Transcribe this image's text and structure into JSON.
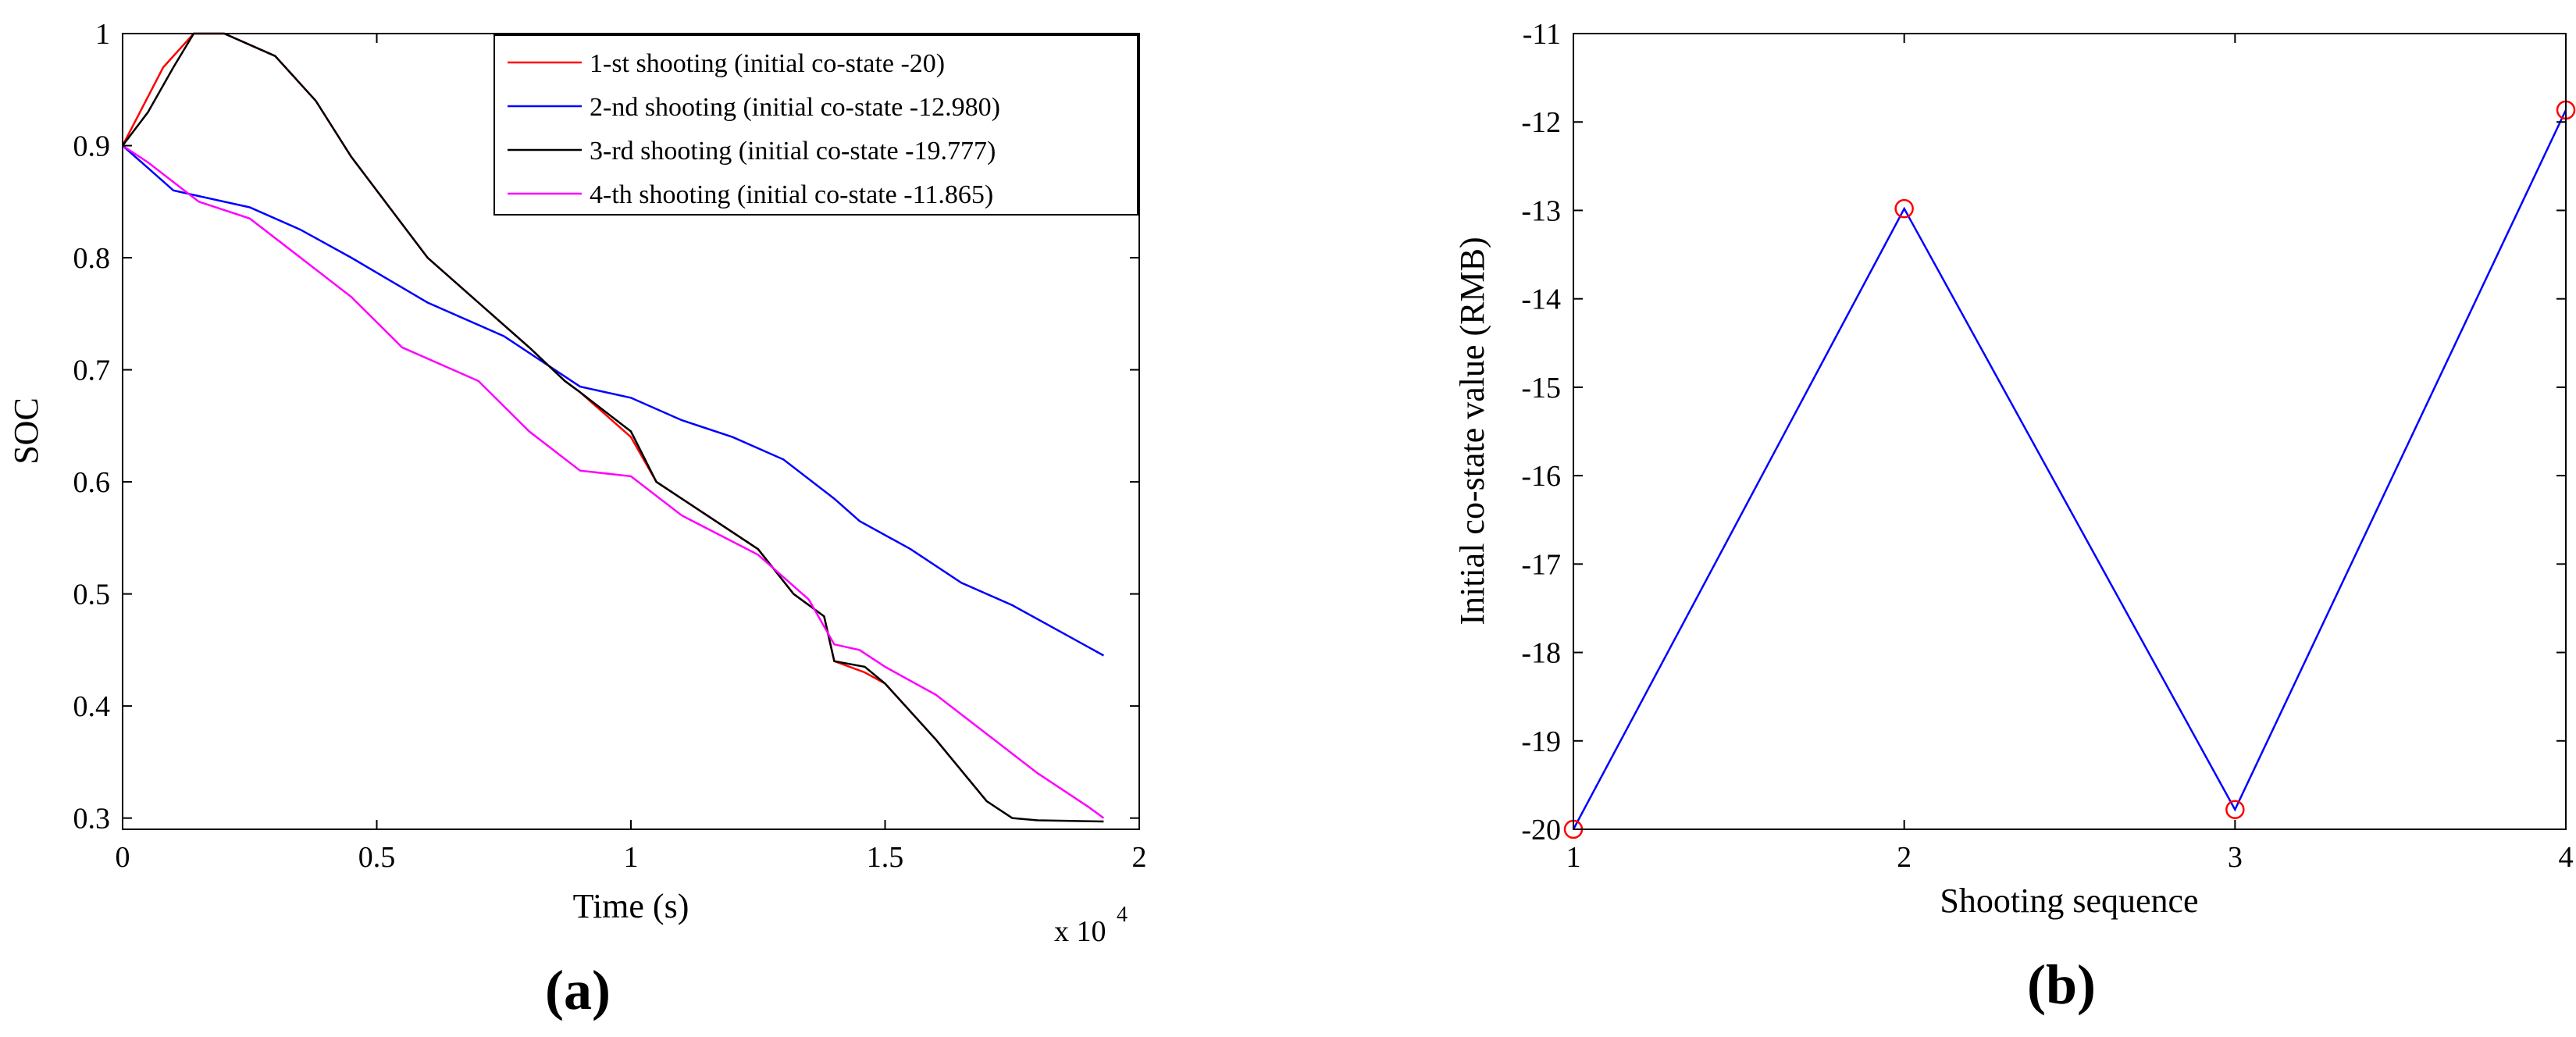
{
  "chart_data": [
    {
      "type": "line",
      "panel_label": "a",
      "xlabel": "Time (s)",
      "ylabel": "SOC",
      "x_multiplier_label": "x 10",
      "x_multiplier_exp": "4",
      "xlim": [
        0,
        2
      ],
      "ylim": [
        0.29,
        1
      ],
      "xticks": [
        "0",
        "0.5",
        "1",
        "1.5",
        "2"
      ],
      "yticks": [
        "0.3",
        "0.4",
        "0.5",
        "0.6",
        "0.7",
        "0.8",
        "0.9",
        "1"
      ],
      "legend_position": "top-right",
      "series": [
        {
          "name": "1-st shooting (initial co-state -20)",
          "color": "#ff0000",
          "x": [
            0,
            0.08,
            0.14,
            0.2,
            0.3,
            0.38,
            0.45,
            0.55,
            0.6,
            0.7,
            0.8,
            0.87,
            0.9,
            1.0,
            1.05,
            1.15,
            1.25,
            1.32,
            1.38,
            1.4,
            1.46,
            1.5,
            1.6,
            1.7
          ],
          "values": [
            0.9,
            0.97,
            1.0,
            1.0,
            0.98,
            0.94,
            0.89,
            0.83,
            0.8,
            0.76,
            0.72,
            0.69,
            0.68,
            0.64,
            0.6,
            0.57,
            0.54,
            0.5,
            0.48,
            0.44,
            0.43,
            0.42,
            0.37,
            0.315
          ]
        },
        {
          "name": "2-nd shooting (initial co-state -12.980)",
          "color": "#0000ff",
          "x": [
            0,
            0.05,
            0.1,
            0.15,
            0.25,
            0.35,
            0.45,
            0.6,
            0.75,
            0.9,
            1.0,
            1.1,
            1.2,
            1.3,
            1.4,
            1.45,
            1.55,
            1.65,
            1.75,
            1.85,
            1.93
          ],
          "values": [
            0.9,
            0.88,
            0.86,
            0.855,
            0.845,
            0.825,
            0.8,
            0.76,
            0.73,
            0.685,
            0.675,
            0.655,
            0.64,
            0.62,
            0.585,
            0.565,
            0.54,
            0.51,
            0.49,
            0.465,
            0.445
          ]
        },
        {
          "name": "3-rd shooting (initial co-state -19.777)",
          "color": "#000000",
          "x": [
            0,
            0.05,
            0.1,
            0.14,
            0.2,
            0.3,
            0.38,
            0.45,
            0.55,
            0.6,
            0.7,
            0.8,
            0.87,
            0.9,
            1.0,
            1.05,
            1.15,
            1.25,
            1.32,
            1.38,
            1.4,
            1.46,
            1.5,
            1.6,
            1.7,
            1.75,
            1.8,
            1.93
          ],
          "values": [
            0.9,
            0.93,
            0.97,
            1.0,
            1.0,
            0.98,
            0.94,
            0.89,
            0.83,
            0.8,
            0.76,
            0.72,
            0.69,
            0.68,
            0.645,
            0.6,
            0.57,
            0.54,
            0.5,
            0.48,
            0.44,
            0.435,
            0.42,
            0.37,
            0.315,
            0.3,
            0.298,
            0.297
          ]
        },
        {
          "name": "4-th shooting (initial co-state -11.865)",
          "color": "#ff00ff",
          "x": [
            0,
            0.05,
            0.15,
            0.25,
            0.35,
            0.45,
            0.55,
            0.7,
            0.8,
            0.9,
            1.0,
            1.1,
            1.25,
            1.35,
            1.4,
            1.45,
            1.5,
            1.6,
            1.7,
            1.8,
            1.9,
            1.93
          ],
          "values": [
            0.9,
            0.885,
            0.85,
            0.835,
            0.8,
            0.765,
            0.72,
            0.69,
            0.645,
            0.61,
            0.605,
            0.57,
            0.535,
            0.495,
            0.455,
            0.45,
            0.435,
            0.41,
            0.375,
            0.34,
            0.31,
            0.3
          ]
        }
      ]
    },
    {
      "type": "line",
      "panel_label": "b",
      "xlabel": "Shooting sequence",
      "ylabel": "Initial co-state value (RMB)",
      "xlim": [
        1,
        4
      ],
      "ylim": [
        -20,
        -11
      ],
      "xticks": [
        "1",
        "2",
        "3",
        "4"
      ],
      "yticks": [
        "-20",
        "-19",
        "-18",
        "-17",
        "-16",
        "-15",
        "-14",
        "-13",
        "-12",
        "-11"
      ],
      "series": [
        {
          "name": "Initial co-state",
          "line_color": "#0000ff",
          "marker_color": "#ff0000",
          "x": [
            1,
            2,
            3,
            4
          ],
          "values": [
            -20,
            -12.98,
            -19.777,
            -11.865
          ]
        }
      ]
    }
  ]
}
